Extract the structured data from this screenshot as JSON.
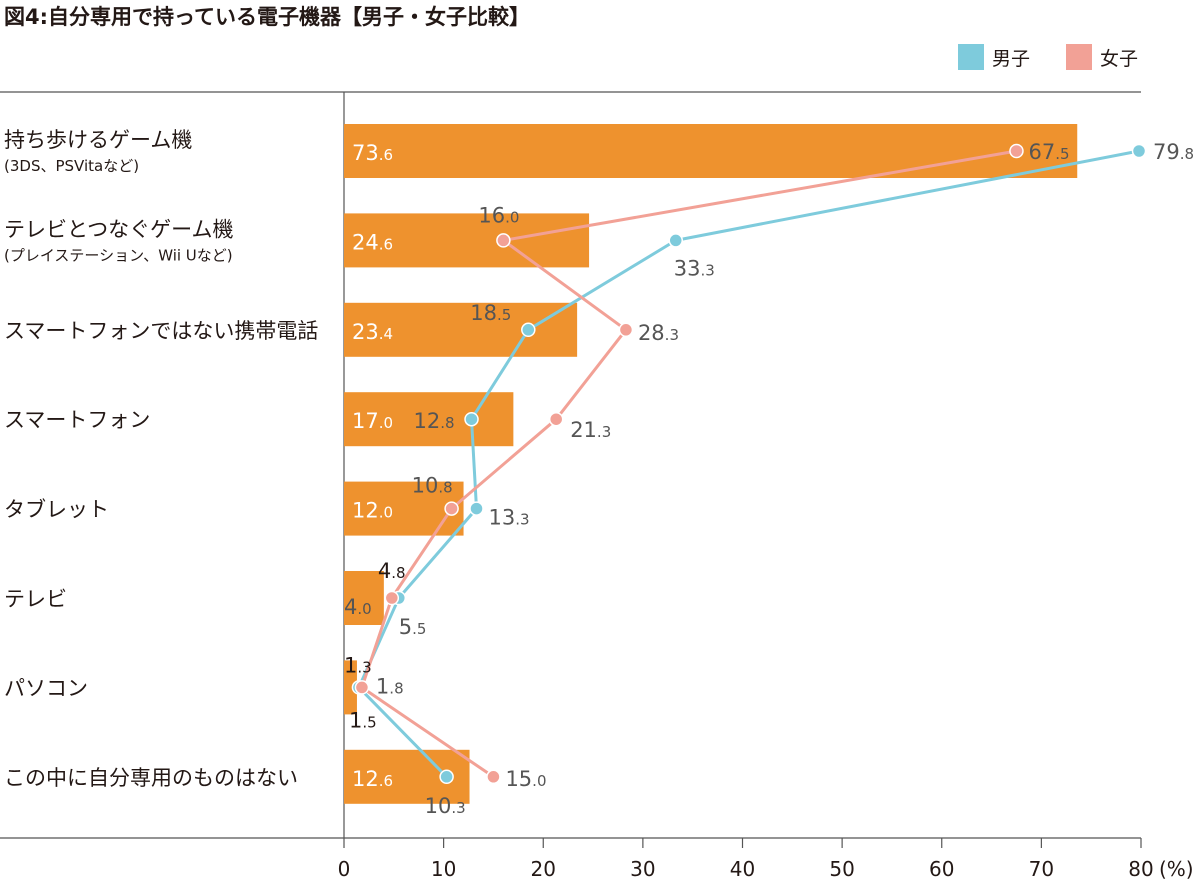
{
  "chart_data": {
    "type": "bar",
    "title": "図4:自分専用で持っている電子機器【男子・女子比較】",
    "unit": "(%)",
    "categories": [
      {
        "label": "持ち歩けるゲーム機",
        "sub": "(3DS、PSVitaなど)"
      },
      {
        "label": "テレビとつなぐゲーム機",
        "sub": "(プレイステーション、Wii Uなど)"
      },
      {
        "label": "スマートフォンではない携帯電話",
        "sub": ""
      },
      {
        "label": "スマートフォン",
        "sub": ""
      },
      {
        "label": "タブレット",
        "sub": ""
      },
      {
        "label": "テレビ",
        "sub": ""
      },
      {
        "label": "パソコン",
        "sub": ""
      },
      {
        "label": "この中に自分専用のものはない",
        "sub": ""
      }
    ],
    "bar_values": [
      73.6,
      24.6,
      23.4,
      17.0,
      12.0,
      4.0,
      1.3,
      12.6
    ],
    "bar_labels": [
      "73.6",
      "24.6",
      "23.4",
      "17.0",
      "12.0",
      "4.0",
      "1.3",
      "12.6"
    ],
    "series": [
      {
        "name": "男子",
        "color": "#7ecbdc",
        "values": [
          79.8,
          33.3,
          18.5,
          12.8,
          13.3,
          5.5,
          1.5,
          10.3
        ],
        "labels": [
          "79.8",
          "33.3",
          "18.5",
          "12.8",
          "13.3",
          "5.5",
          "1.5",
          "10.3"
        ]
      },
      {
        "name": "女子",
        "color": "#f2a196",
        "values": [
          67.5,
          16.0,
          28.3,
          21.3,
          10.8,
          4.8,
          1.8,
          15.0
        ],
        "labels": [
          "67.5",
          "16.0",
          "28.3",
          "21.3",
          "10.8",
          "4.8",
          "1.8",
          "15.0"
        ]
      }
    ],
    "bar_color": "#ee922e",
    "xlim": [
      0,
      80
    ],
    "xticks": [
      "0",
      "10",
      "20",
      "30",
      "40",
      "50",
      "60",
      "70",
      "80"
    ],
    "legend": "top-right",
    "grid": false
  }
}
